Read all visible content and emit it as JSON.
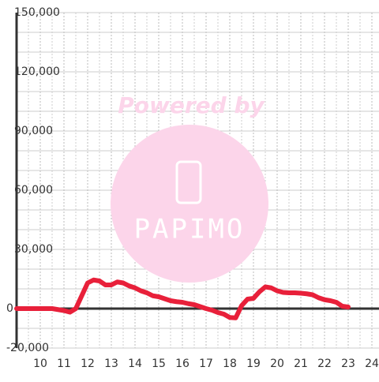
{
  "chart_data": {
    "type": "line",
    "watermark": {
      "text": "Powered by",
      "logo": "PAPIMO"
    },
    "x": [
      9.0,
      10.5,
      11.0,
      11.25,
      11.5,
      11.75,
      12.0,
      12.25,
      12.5,
      12.75,
      13.0,
      13.25,
      13.5,
      13.75,
      14.0,
      14.25,
      14.5,
      14.75,
      15.0,
      15.25,
      15.5,
      15.75,
      16.0,
      16.25,
      16.5,
      16.75,
      17.0,
      17.25,
      17.5,
      17.75,
      18.0,
      18.25,
      18.5,
      18.75,
      19.0,
      19.25,
      19.5,
      19.75,
      20.0,
      20.25,
      20.5,
      20.75,
      21.0,
      21.25,
      21.5,
      21.75,
      22.0,
      22.25,
      22.5,
      22.75,
      23.0
    ],
    "series": [
      {
        "color": "#e8203a",
        "values": [
          0,
          0,
          -1000,
          -1800,
          0,
          6500,
          13000,
          14500,
          14000,
          12000,
          12000,
          13500,
          13000,
          11500,
          10500,
          9000,
          8000,
          6500,
          6000,
          5000,
          4000,
          3500,
          3200,
          2500,
          2000,
          1000,
          0,
          -800,
          -2000,
          -2800,
          -4500,
          -4700,
          1500,
          4800,
          5200,
          8500,
          11000,
          10500,
          9000,
          8200,
          8000,
          8000,
          7800,
          7500,
          7000,
          5500,
          4500,
          4000,
          3200,
          1200,
          800
        ]
      }
    ],
    "xlim": [
      9,
      24.3
    ],
    "xticks": [
      10,
      11,
      12,
      13,
      14,
      15,
      16,
      17,
      18,
      19,
      20,
      21,
      22,
      23,
      24
    ],
    "x_minor_ticks": [
      9.5,
      10.5,
      11.5,
      12.5,
      13.5,
      14.5,
      15.5,
      16.5,
      17.5,
      18.5,
      19.5,
      20.5,
      21.5,
      22.5,
      23.5
    ],
    "ylim": [
      -20000,
      150000
    ],
    "yticks": [
      {
        "value": 150000,
        "label": "150,000"
      },
      {
        "value": 120000,
        "label": "120,000"
      },
      {
        "value": 90000,
        "label": "90,000"
      },
      {
        "value": 60000,
        "label": "60,000"
      },
      {
        "value": 30000,
        "label": "30,000"
      },
      0,
      {
        "value": -20000,
        "label": "-20,000"
      }
    ],
    "y_minor_ticks": [
      -10000,
      10000,
      20000,
      40000,
      50000,
      70000,
      80000,
      100000,
      110000,
      130000,
      140000
    ],
    "grid": true
  }
}
